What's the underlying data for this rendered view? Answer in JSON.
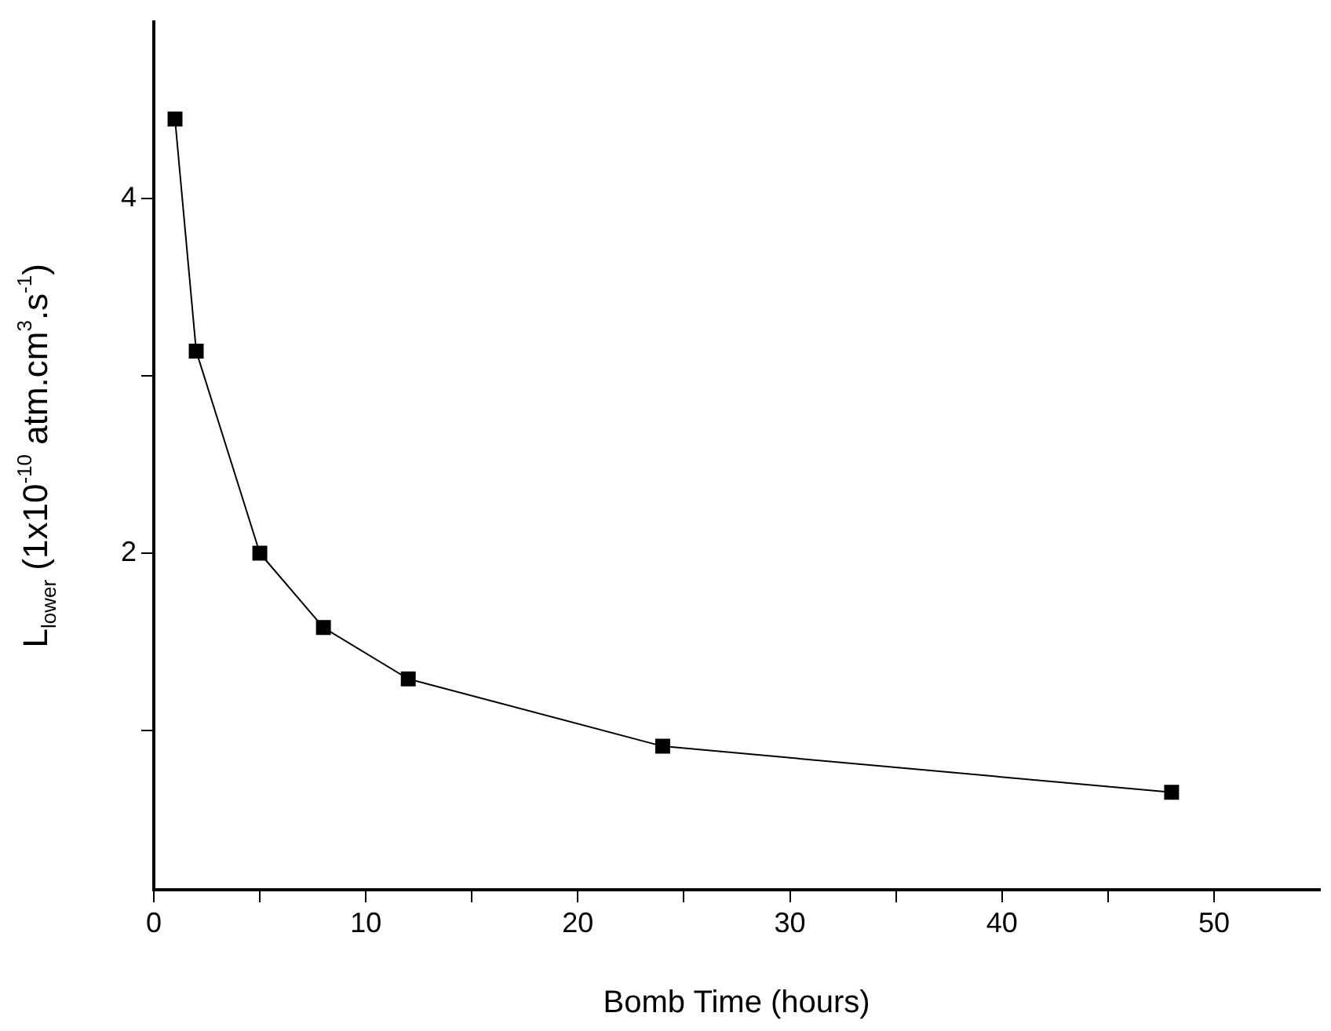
{
  "chart_data": {
    "type": "line",
    "xlabel": "Bomb Time (hours)",
    "ylabel": "L$_{lower}$ (1x10$^{-10}$ atm.cm$^{3}$.s$^{-1}$)",
    "x": [
      1,
      2,
      5,
      8,
      12,
      24,
      48
    ],
    "series": [
      {
        "color": "#000000",
        "values": [
          4.45,
          3.14,
          2.0,
          1.58,
          1.29,
          0.91,
          0.65
        ]
      }
    ],
    "xlim": [
      0,
      55
    ],
    "xticks": [
      0,
      {
        "value": 5,
        "label": null
      },
      10,
      {
        "value": 15,
        "label": null
      },
      20,
      {
        "value": 25,
        "label": null
      },
      30,
      {
        "value": 35,
        "label": null
      },
      40,
      {
        "value": 45,
        "label": null
      },
      50
    ],
    "ylim": [
      0.1,
      5
    ],
    "yticks": [
      {
        "value": 1,
        "label": null
      },
      2,
      {
        "value": 3,
        "label": null
      },
      4
    ],
    "marker": "square",
    "line_style": "solid",
    "grid": false,
    "legend": false
  }
}
